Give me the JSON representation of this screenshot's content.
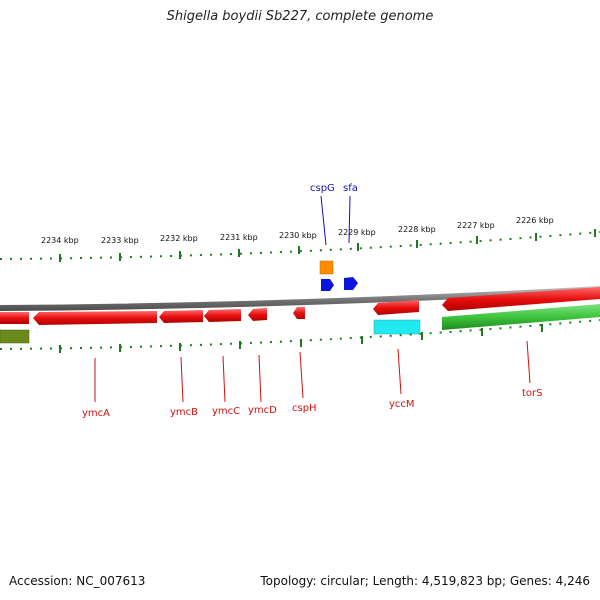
{
  "title": "Shigella boydii Sb227, complete genome",
  "accession": "Accession: NC_007613",
  "stats": "Topology: circular; Length: 4,519,823 bp; Genes: 4,246",
  "scale_labels": [
    "2234 kbp",
    "2233 kbp",
    "2232 kbp",
    "2231 kbp",
    "2230 kbp",
    "2229 kbp",
    "2228 kbp",
    "2227 kbp",
    "2226 kbp"
  ],
  "gene_labels": {
    "cspG": "cspG",
    "sfa": "sfa",
    "ymcA": "ymcA",
    "ymcB": "ymcB",
    "ymcC": "ymcC",
    "ymcD": "ymcD",
    "cspH": "cspH",
    "yccM": "yccM",
    "torS": "torS"
  },
  "colors": {
    "forward_gene": "#e81010",
    "reverse_gene": "#e81010",
    "rna_gene": "#ff8c00",
    "blue_gene": "#0a14e0",
    "cyan_feature": "#22e8f0",
    "green_feature": "#3ec43e",
    "olive_feature": "#6b8a1e",
    "backbone": "#8a8a8a",
    "tick": "#1f7a1f"
  }
}
